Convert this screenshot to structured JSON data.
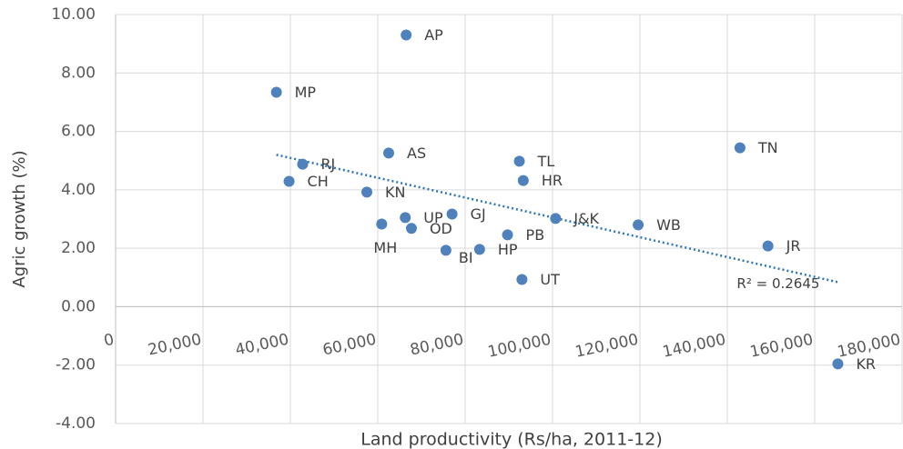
{
  "chart_data": {
    "type": "scatter",
    "x_label": "Land productivity (Rs/ha, 2011-12)",
    "y_label": "Agric growth (%)",
    "color": "#4f81bd",
    "labels": [
      "AP",
      "MP",
      "TN",
      "AS",
      "TL",
      "RJ",
      "CH",
      "HR",
      "KN",
      "GJ",
      "UP",
      "J&K",
      "MH",
      "WB",
      "OD",
      "PB",
      "JR",
      "BI",
      "HP",
      "UT",
      "KR"
    ],
    "x": [
      66500,
      36800,
      142900,
      62500,
      92400,
      42800,
      39700,
      93300,
      57500,
      77000,
      66300,
      100700,
      60900,
      119600,
      67700,
      89700,
      149300,
      75600,
      83300,
      93000,
      165300
    ],
    "values": [
      9.3,
      7.34,
      5.44,
      5.26,
      4.98,
      4.88,
      4.29,
      4.32,
      3.92,
      3.17,
      3.05,
      3.02,
      2.83,
      2.8,
      2.68,
      2.46,
      2.08,
      1.93,
      1.96,
      0.93,
      -1.96
    ],
    "trendline": {
      "x": [
        36800,
        165300
      ],
      "y": [
        5.2,
        0.84
      ],
      "label": "R² = 0.2645",
      "color": "#2e75b6"
    },
    "xlim": [
      0,
      180000
    ],
    "ylim": [
      -4,
      10
    ],
    "xticks": [
      0,
      {
        "value": 20000,
        "label": "20,000"
      },
      {
        "value": 40000,
        "label": "40,000"
      },
      {
        "value": 60000,
        "label": "60,000"
      },
      {
        "value": 80000,
        "label": "80,000"
      },
      {
        "value": 100000,
        "label": "100,000"
      },
      {
        "value": 120000,
        "label": "120,000"
      },
      {
        "value": 140000,
        "label": "140,000"
      },
      {
        "value": 160000,
        "label": "160,000"
      },
      {
        "value": 180000,
        "label": "180,000"
      }
    ],
    "yticks": [
      {
        "value": -4,
        "label": "-4.00"
      },
      {
        "value": -2,
        "label": "-2.00"
      },
      {
        "value": 0,
        "label": "0.00"
      },
      {
        "value": 2,
        "label": "2.00"
      },
      {
        "value": 4,
        "label": "4.00"
      },
      {
        "value": 6,
        "label": "6.00"
      },
      {
        "value": 8,
        "label": "8.00"
      },
      {
        "value": 10,
        "label": "10.00"
      }
    ],
    "grid": true
  }
}
